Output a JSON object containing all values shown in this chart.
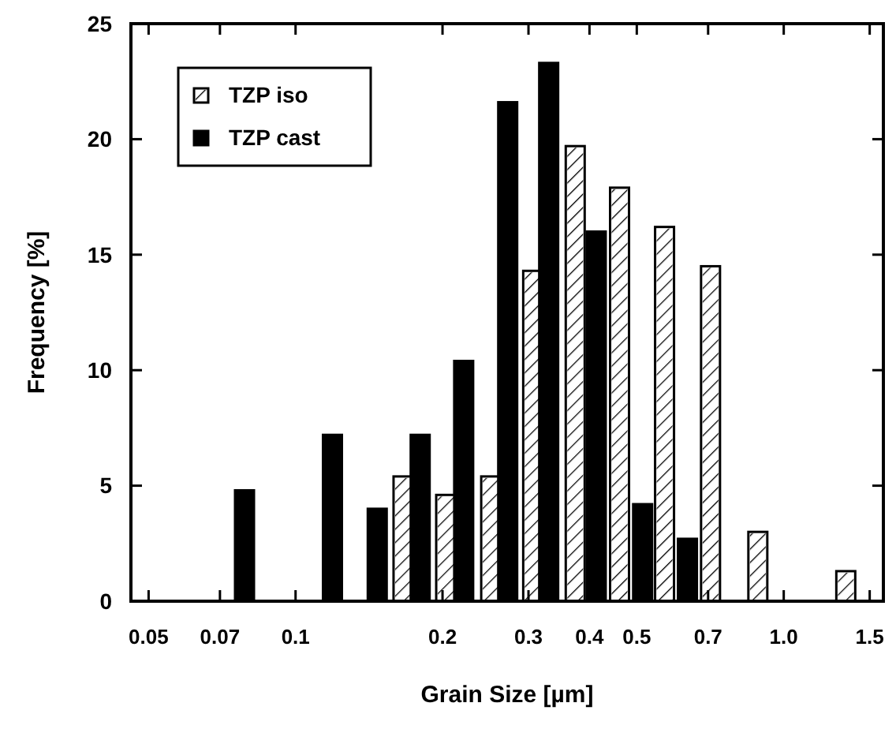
{
  "chart_data": {
    "type": "bar",
    "xlabel": "Grain Size [µm]",
    "ylabel": "Frequency [%]",
    "log": "x",
    "xlim": [
      0.046,
      1.6
    ],
    "xticks": [
      0.05,
      0.07,
      0.1,
      0.2,
      0.3,
      {
        "value": 0.4,
        "label": "0.4"
      },
      0.5,
      0.7,
      {
        "value": 1,
        "label": "1.0"
      },
      1.5
    ],
    "ylim": [
      0,
      25
    ],
    "yticks": [
      0,
      5,
      10,
      15,
      20,
      25
    ],
    "legend": "top left",
    "grid": false,
    "series": [
      {
        "name": "TZP iso",
        "color": "#ffffff",
        "x": [
          0.166,
          0.203,
          0.251,
          0.306,
          0.374,
          0.461,
          0.57,
          0.708,
          0.885,
          1.34
        ],
        "values": [
          5.4,
          4.6,
          5.4,
          14.3,
          19.7,
          17.9,
          16.2,
          14.5,
          3.0,
          1.3
        ]
      },
      {
        "name": "TZP cast",
        "color": "#000000",
        "x": [
          0.0786,
          0.119,
          0.147,
          0.18,
          0.221,
          0.272,
          0.33,
          0.413,
          0.514,
          0.635
        ],
        "values": [
          4.8,
          7.2,
          4.0,
          7.2,
          10.4,
          21.6,
          23.3,
          16.0,
          4.2,
          2.7
        ]
      }
    ]
  }
}
